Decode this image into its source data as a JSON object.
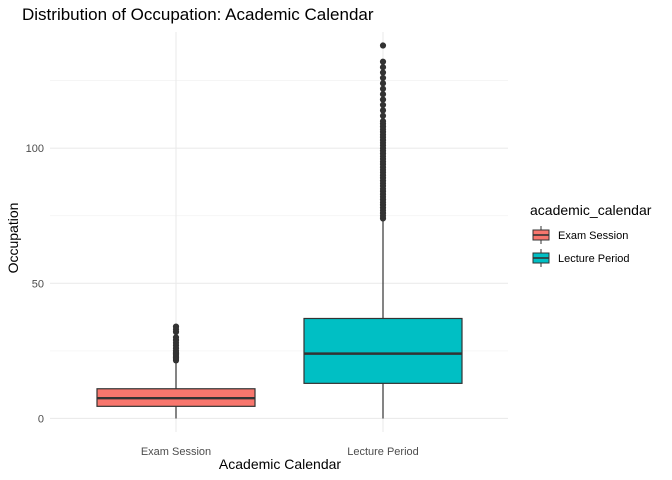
{
  "chart_data": {
    "type": "boxplot",
    "title": "Distribution of Occupation: Academic Calendar",
    "xlabel": "Academic Calendar",
    "ylabel": "Occupation",
    "ylim": [
      -5,
      143
    ],
    "yticks": [
      0,
      50,
      100
    ],
    "grid": true,
    "legend": {
      "title": "academic_calendar",
      "position": "right"
    },
    "categories": [
      "Exam Session",
      "Lecture Period"
    ],
    "series": [
      {
        "name": "Exam Session",
        "color": "#F8766D",
        "min": 0,
        "q1": 4.5,
        "median": 7.5,
        "q3": 11,
        "whisker_high": 21,
        "outliers": [
          21.5,
          22,
          22.5,
          23,
          23.5,
          24,
          24.5,
          25,
          26,
          27,
          28,
          29,
          30,
          32,
          33,
          34
        ]
      },
      {
        "name": "Lecture Period",
        "color": "#00BFC4",
        "min": 0,
        "q1": 13,
        "median": 24,
        "q3": 37,
        "whisker_high": 73,
        "outliers": [
          74,
          75,
          76,
          77,
          78,
          79,
          80,
          81,
          82,
          83,
          84,
          85,
          86,
          87,
          88,
          89,
          90,
          91,
          92,
          93,
          94,
          95,
          96,
          97,
          98,
          99,
          100,
          101,
          102,
          103,
          104,
          105,
          106,
          107,
          108,
          109,
          110,
          112,
          114,
          116,
          118,
          120,
          122,
          124,
          126,
          128,
          130,
          132,
          138
        ]
      }
    ]
  }
}
